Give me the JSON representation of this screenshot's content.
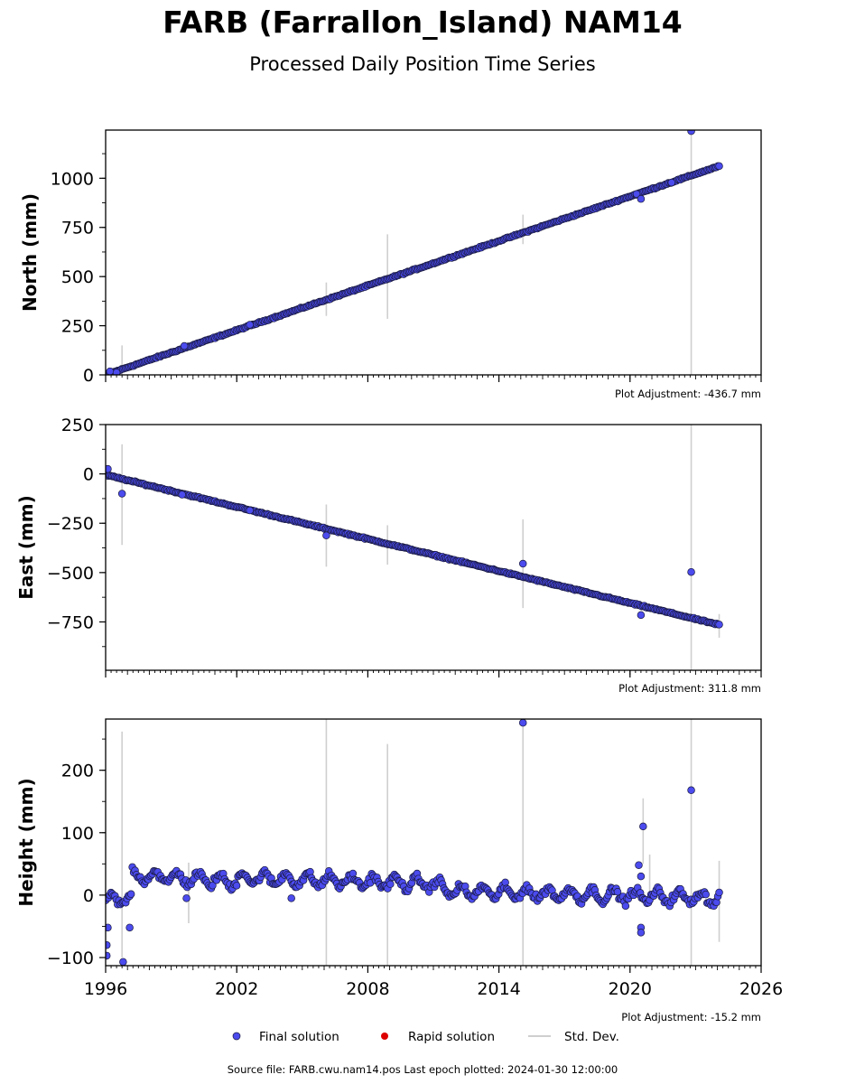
{
  "title": "FARB (Farrallon_Island) NAM14",
  "subtitle": "Processed Daily Position Time Series",
  "footer": "Source file: FARB.cwu.nam14.pos  Last epoch plotted: 2024-01-30 12:00:00",
  "legend": {
    "final": "Final solution",
    "rapid": "Rapid solution",
    "std": "Std. Dev."
  },
  "colors": {
    "final_fill": "#4b4bee",
    "final_edge": "#1a1a40",
    "rapid": "#dd0000",
    "std": "#cfcfcf"
  },
  "chart_data": [
    {
      "type": "scatter",
      "ylabel": "North (mm)",
      "adjustment": "Plot Adjustment: -436.7 mm",
      "xlim": [
        1996,
        2026
      ],
      "ylim": [
        0,
        1245
      ],
      "yticks": [
        0,
        250,
        500,
        750,
        1000
      ],
      "ytick_labels": [
        "0",
        "250",
        "500",
        "750",
        "1000"
      ],
      "xticks": [
        1996,
        2002,
        2008,
        2014,
        2020,
        2026
      ],
      "xtick_labels": [],
      "trend": {
        "x": [
          1996.0,
          2024.08
        ],
        "y": [
          0,
          1062
        ]
      },
      "outliers": [
        {
          "x": 1996.2,
          "y": 18
        },
        {
          "x": 1996.5,
          "y": 12
        },
        {
          "x": 1999.6,
          "y": 147
        },
        {
          "x": 2002.6,
          "y": 255
        },
        {
          "x": 2020.3,
          "y": 920
        },
        {
          "x": 2020.5,
          "y": 895
        },
        {
          "x": 2021.9,
          "y": 978
        },
        {
          "x": 2022.8,
          "y": 1240
        }
      ],
      "stddev": [
        {
          "x": 1996.75,
          "low": 0,
          "high": 150
        },
        {
          "x": 2006.1,
          "low": 300,
          "high": 470
        },
        {
          "x": 2008.9,
          "low": 285,
          "high": 715
        },
        {
          "x": 2015.1,
          "low": 665,
          "high": 815
        },
        {
          "x": 2022.8,
          "low": 0,
          "high": 1245
        }
      ]
    },
    {
      "type": "scatter",
      "ylabel": "East (mm)",
      "adjustment": "Plot Adjustment: 311.8 mm",
      "xlim": [
        1996,
        2026
      ],
      "ylim": [
        -995,
        250
      ],
      "yticks": [
        250,
        0,
        -250,
        -500,
        -750
      ],
      "ytick_labels": [
        "250",
        "0",
        "−250",
        "−500",
        "−750"
      ],
      "xticks": [
        1996,
        2002,
        2008,
        2014,
        2020,
        2026
      ],
      "xtick_labels": [],
      "trend": {
        "x": [
          1996.0,
          2024.08
        ],
        "y": [
          -5,
          -765
        ]
      },
      "outliers": [
        {
          "x": 1996.1,
          "y": 25
        },
        {
          "x": 1996.75,
          "y": -100
        },
        {
          "x": 1999.5,
          "y": -105
        },
        {
          "x": 2002.6,
          "y": -185
        },
        {
          "x": 2006.1,
          "y": -312
        },
        {
          "x": 2015.1,
          "y": -455
        },
        {
          "x": 2020.5,
          "y": -715
        },
        {
          "x": 2022.8,
          "y": -497
        }
      ],
      "stddev": [
        {
          "x": 1996.75,
          "low": -360,
          "high": 150
        },
        {
          "x": 2006.1,
          "low": -470,
          "high": -155
        },
        {
          "x": 2008.9,
          "low": -460,
          "high": -260
        },
        {
          "x": 2015.1,
          "low": -680,
          "high": -230
        },
        {
          "x": 2022.8,
          "low": -995,
          "high": 250
        },
        {
          "x": 2024.08,
          "low": -830,
          "high": -710
        }
      ]
    },
    {
      "type": "scatter",
      "ylabel": "Height (mm)",
      "adjustment": "Plot Adjustment: -15.2 mm",
      "xlim": [
        1996,
        2026
      ],
      "ylim": [
        -113,
        282
      ],
      "yticks": [
        200,
        100,
        0,
        -100
      ],
      "ytick_labels": [
        "200",
        "100",
        "0",
        "−100"
      ],
      "xticks": [
        1996,
        2002,
        2008,
        2014,
        2020,
        2026
      ],
      "xtick_labels": [
        "1996",
        "2002",
        "2008",
        "2014",
        "2020",
        "2026"
      ],
      "trend": {
        "x": [
          1996.0,
          2024.08
        ],
        "y": [
          0,
          0
        ]
      },
      "outliers": [
        {
          "x": 1996.05,
          "y": -80
        },
        {
          "x": 1996.05,
          "y": -97
        },
        {
          "x": 1996.1,
          "y": -52
        },
        {
          "x": 1996.8,
          "y": -107
        },
        {
          "x": 1997.1,
          "y": -52
        },
        {
          "x": 1999.7,
          "y": -5
        },
        {
          "x": 2004.5,
          "y": -5
        },
        {
          "x": 2015.1,
          "y": 276
        },
        {
          "x": 2020.4,
          "y": 48
        },
        {
          "x": 2020.5,
          "y": 30
        },
        {
          "x": 2020.6,
          "y": 110
        },
        {
          "x": 2020.5,
          "y": -52
        },
        {
          "x": 2020.5,
          "y": -60
        },
        {
          "x": 2022.8,
          "y": 168
        }
      ],
      "stddev": [
        {
          "x": 1996.75,
          "low": -100,
          "high": 262
        },
        {
          "x": 1999.8,
          "low": -45,
          "high": 52
        },
        {
          "x": 2006.1,
          "low": -113,
          "high": 282
        },
        {
          "x": 2008.9,
          "low": -113,
          "high": 242
        },
        {
          "x": 2015.1,
          "low": -113,
          "high": 282
        },
        {
          "x": 2020.6,
          "low": 50,
          "high": 155
        },
        {
          "x": 2020.9,
          "low": 0,
          "high": 65
        },
        {
          "x": 2022.8,
          "low": -113,
          "high": 282
        },
        {
          "x": 2024.08,
          "low": -75,
          "high": 55
        }
      ]
    }
  ]
}
